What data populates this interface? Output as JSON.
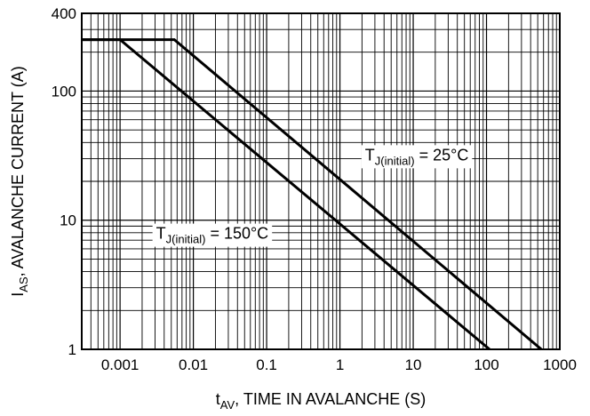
{
  "chart_data": {
    "type": "line",
    "x_scale": "log",
    "y_scale": "log",
    "xlim": [
      0.0003,
      1000
    ],
    "ylim": [
      1,
      400
    ],
    "grid": true,
    "x_ticks": [
      {
        "value": 0.001,
        "label": "0.001"
      },
      {
        "value": 0.01,
        "label": "0.01"
      },
      {
        "value": 0.1,
        "label": "0.1"
      },
      {
        "value": 1,
        "label": "1"
      },
      {
        "value": 10,
        "label": "10"
      },
      {
        "value": 100,
        "label": "100"
      },
      {
        "value": 1000,
        "label": "1000"
      }
    ],
    "y_ticks": [
      {
        "value": 1,
        "label": "1"
      },
      {
        "value": 10,
        "label": "10"
      },
      {
        "value": 100,
        "label": "100"
      },
      {
        "value": 400,
        "label": "400"
      }
    ],
    "xlabel": {
      "prefix": "t",
      "sub": "AV",
      "suffix": ", TIME IN AVALANCHE (S)"
    },
    "ylabel": {
      "prefix": "I",
      "sub": "AS",
      "suffix": ", AVALANCHE CURRENT (A)"
    },
    "series": [
      {
        "name": {
          "prefix": "T",
          "sub": "J(initial)",
          "suffix": " = 25°C"
        },
        "x": [
          0.0003,
          0.0055,
          560
        ],
        "y": [
          250,
          250,
          1
        ],
        "label_at": [
          2.2,
          32
        ]
      },
      {
        "name": {
          "prefix": "T",
          "sub": "J(initial)",
          "suffix": " = 150°C"
        },
        "x": [
          0.0003,
          0.001,
          110
        ],
        "y": [
          250,
          250,
          1
        ],
        "label_at": [
          0.0031,
          7.9
        ]
      }
    ]
  }
}
